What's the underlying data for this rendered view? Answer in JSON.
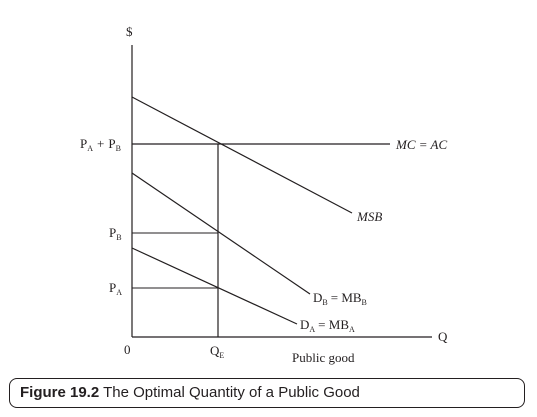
{
  "diagram": {
    "y_axis_label": "$",
    "x_axis_label": "Q",
    "origin_label": "0",
    "x_axis_caption": "Public good",
    "price_labels": {
      "combined": {
        "a_main": "P",
        "a_sub": "A",
        "plus": "+",
        "b_main": "P",
        "b_sub": "B"
      },
      "pb": {
        "main": "P",
        "sub": "B"
      },
      "pa": {
        "main": "P",
        "sub": "A"
      }
    },
    "qe_label": {
      "main": "Q",
      "sub": "E"
    },
    "curves": {
      "mc_ac": "MC = AC",
      "msb": "MSB",
      "db": {
        "d": "D",
        "d_sub": "B",
        "eq": "= MB",
        "mb_sub": "B"
      },
      "da": {
        "d": "D",
        "d_sub": "A",
        "eq": "= MB",
        "mb_sub": "A"
      }
    }
  },
  "caption": {
    "figure_number": "Figure 19.2",
    "title": "The Optimal Quantity of a Public Good"
  }
}
